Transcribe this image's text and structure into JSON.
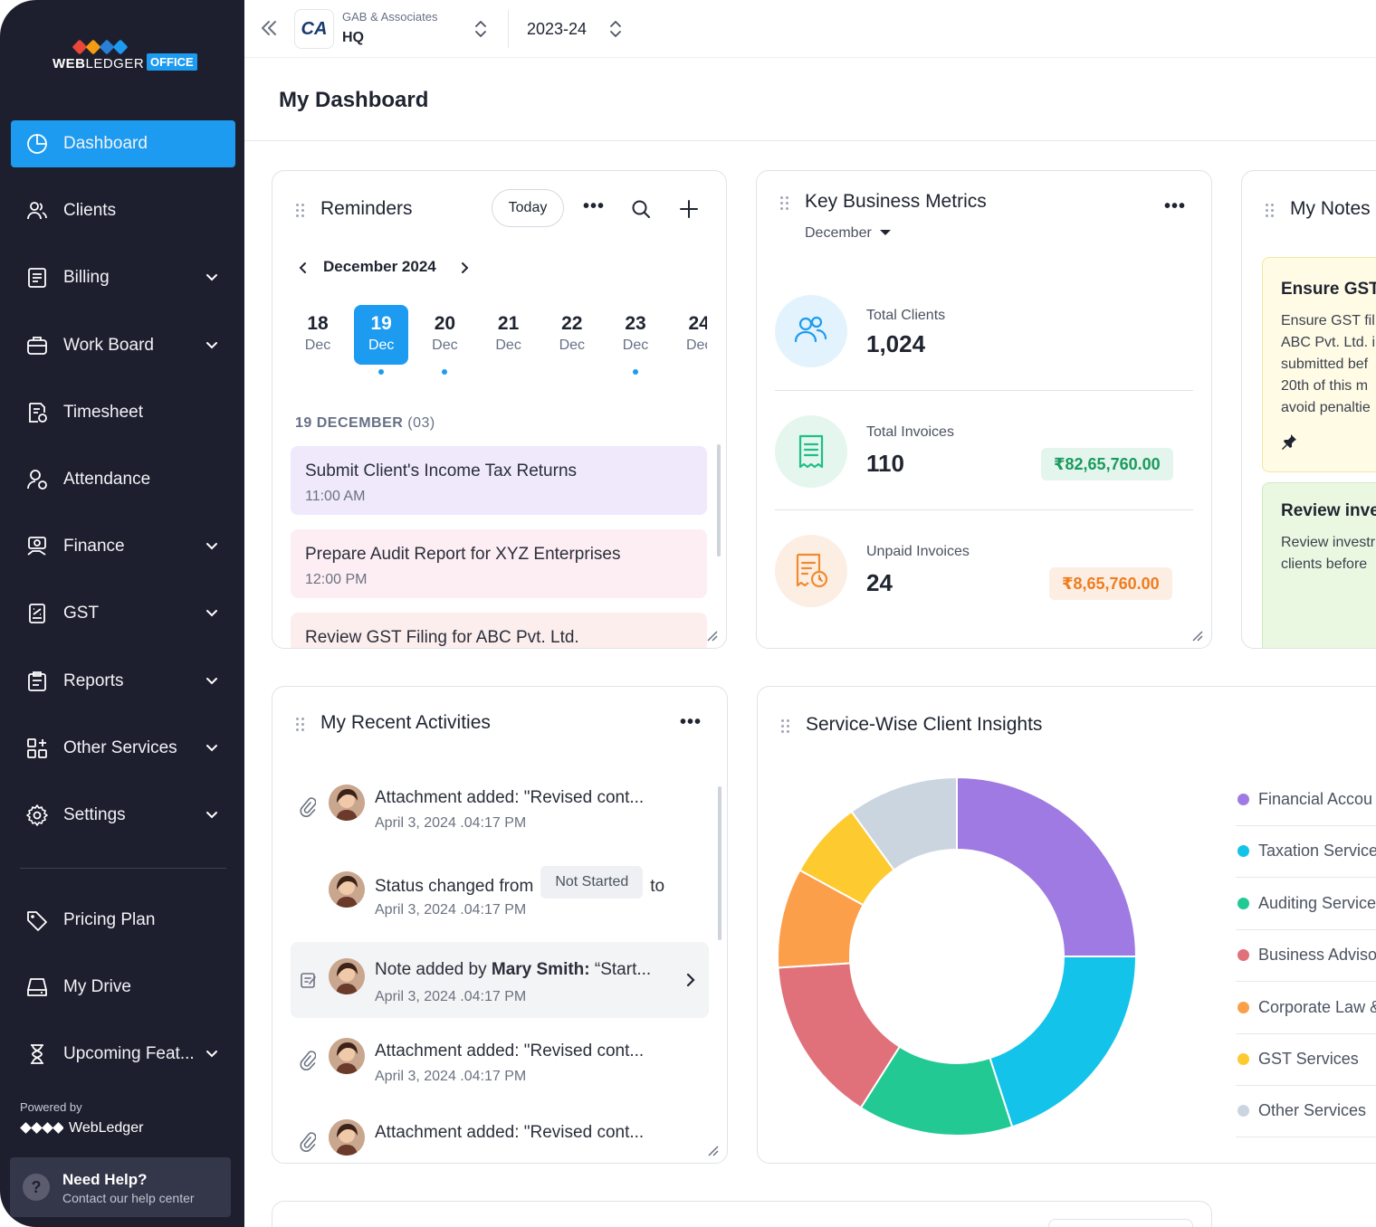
{
  "brand": {
    "name_bold": "WEB",
    "name_light": "LEDGER",
    "badge": "OFFICE",
    "colors": [
      "#e8473a",
      "#f39c12",
      "#2980d9",
      "#1d9bf0"
    ]
  },
  "sidebar": {
    "items": [
      {
        "label": "Dashboard",
        "icon": "dashboard-icon",
        "active": true,
        "chevron": false
      },
      {
        "label": "Clients",
        "icon": "users-icon",
        "chevron": false
      },
      {
        "label": "Billing",
        "icon": "invoice-icon",
        "chevron": true
      },
      {
        "label": "Work Board",
        "icon": "briefcase-icon",
        "chevron": true
      },
      {
        "label": "Timesheet",
        "icon": "timesheet-icon",
        "chevron": false
      },
      {
        "label": "Attendance",
        "icon": "user-clock-icon",
        "chevron": false
      },
      {
        "label": "Finance",
        "icon": "finance-icon",
        "chevron": true
      },
      {
        "label": "GST",
        "icon": "gst-icon",
        "chevron": true
      },
      {
        "label": "Reports",
        "icon": "clipboard-icon",
        "chevron": true
      },
      {
        "label": "Other Services",
        "icon": "grid-plus-icon",
        "chevron": true
      },
      {
        "label": "Settings",
        "icon": "gear-icon",
        "chevron": true
      }
    ],
    "bottom_items": [
      {
        "label": "Pricing Plan",
        "icon": "tag-icon",
        "chevron": false
      },
      {
        "label": "My Drive",
        "icon": "drive-icon",
        "chevron": false
      },
      {
        "label": "Upcoming Feat...",
        "icon": "hourglass-icon",
        "chevron": true
      }
    ],
    "powered_by": "Powered by",
    "powered_brand": "WebLedger",
    "help": {
      "title": "Need Help?",
      "subtitle": "Contact our help center",
      "icon": "?"
    }
  },
  "topbar": {
    "org_logo": "CA",
    "org_name": "GAB & Associates",
    "branch": "HQ",
    "financial_year": "2023-24"
  },
  "page": {
    "title": "My Dashboard"
  },
  "reminders": {
    "title": "Reminders",
    "today_label": "Today",
    "month": "December 2024",
    "days": [
      {
        "num": "18",
        "mon": "Dec",
        "active": false,
        "has_event": false
      },
      {
        "num": "19",
        "mon": "Dec",
        "active": true,
        "has_event": true
      },
      {
        "num": "20",
        "mon": "Dec",
        "active": false,
        "has_event": true
      },
      {
        "num": "21",
        "mon": "Dec",
        "active": false,
        "has_event": false
      },
      {
        "num": "22",
        "mon": "Dec",
        "active": false,
        "has_event": false
      },
      {
        "num": "23",
        "mon": "Dec",
        "active": false,
        "has_event": true
      },
      {
        "num": "24",
        "mon": "Dec",
        "active": false,
        "has_event": false
      }
    ],
    "selected_date": "19 DECEMBER",
    "selected_count": "(03)",
    "items": [
      {
        "title": "Submit Client's Income Tax Returns",
        "time": "11:00 AM",
        "color": "#efe9fb"
      },
      {
        "title": "Prepare Audit Report for XYZ Enterprises",
        "time": "12:00 PM",
        "color": "#fdeef3"
      },
      {
        "title": "Review GST Filing for ABC Pvt. Ltd.",
        "time": "",
        "color": "#fdeeee"
      }
    ]
  },
  "metrics": {
    "title": "Key Business Metrics",
    "month": "December",
    "items": [
      {
        "label": "Total Clients",
        "value": "1,024",
        "amount": "",
        "icon": "users-icon",
        "bg": "#e3f3fd",
        "fg": "#1d9bf0"
      },
      {
        "label": "Total Invoices",
        "value": "110",
        "amount": "₹82,65,760.00",
        "icon": "receipt-icon",
        "bg": "#e4f6ee",
        "fg": "#1fbf86",
        "amount_bg": "#e3f5ec",
        "amount_fg": "#1b9a5e"
      },
      {
        "label": "Unpaid Invoices",
        "value": "24",
        "amount": "₹8,65,760.00",
        "icon": "receipt-clock-icon",
        "bg": "#fdeee3",
        "fg": "#f18a2e",
        "amount_bg": "#fdeee3",
        "amount_fg": "#ee7d1f"
      }
    ]
  },
  "notes": {
    "title": "My Notes",
    "items": [
      {
        "title": "Ensure GST",
        "body": "Ensure GST fil\nABC Pvt. Ltd. i\nsubmitted bef\n20th of this m\navoid penaltie",
        "color": "#fffbe5",
        "border": "#f2e7a8"
      },
      {
        "title": "Review inve",
        "body": "Review investr\nclients before",
        "color": "#eaf8e2",
        "border": "#cdebbd"
      }
    ]
  },
  "activities": {
    "title": "My Recent Activities",
    "items": [
      {
        "icon": "paperclip-icon",
        "text": "Attachment added: \"Revised cont...",
        "date": "April 3, 2024 .04:17 PM"
      },
      {
        "icon": "",
        "text_pre": "Status changed from",
        "badge": "Not Started",
        "text_post": "to",
        "date": "April 3, 2024 .04:17 PM"
      },
      {
        "icon": "note-edit-icon",
        "text_pre": "Note added by ",
        "bold": "Mary Smith:",
        "text_post": " “Start...",
        "date": "April 3, 2024 .04:17 PM",
        "highlight": true
      },
      {
        "icon": "paperclip-icon",
        "text": "Attachment added: \"Revised cont...",
        "date": "April 3, 2024 .04:17 PM"
      },
      {
        "icon": "paperclip-icon",
        "text": "Attachment added: \"Revised cont...",
        "date": ""
      }
    ]
  },
  "insights": {
    "title": "Service-Wise Client Insights",
    "legend": [
      {
        "label": "Financial Accou",
        "color": "#9f7ae3"
      },
      {
        "label": "Taxation Service",
        "color": "#13c3ea"
      },
      {
        "label": "Auditing Service",
        "color": "#22c993"
      },
      {
        "label": "Business Adviso",
        "color": "#e0707a"
      },
      {
        "label": "Corporate Law &",
        "color": "#fb9f4a"
      },
      {
        "label": "GST Services",
        "color": "#fdca30"
      },
      {
        "label": "Other Services",
        "color": "#cbd5e0"
      }
    ]
  },
  "chart_data": {
    "type": "pie",
    "variant": "donut",
    "title": "Service-Wise Client Insights",
    "categories": [
      "Financial Accou",
      "Taxation Service",
      "Auditing Service",
      "Business Adviso",
      "Corporate Law &",
      "GST Services",
      "Other Services"
    ],
    "values": [
      25,
      20,
      14,
      15,
      9,
      7,
      10
    ],
    "colors": [
      "#9f7ae3",
      "#13c3ea",
      "#22c993",
      "#e0707a",
      "#fb9f4a",
      "#fdca30",
      "#cbd5e0"
    ],
    "legend": "right"
  }
}
